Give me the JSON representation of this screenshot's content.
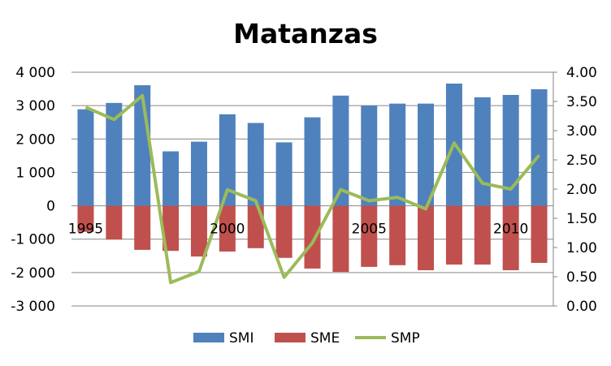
{
  "chart_data": {
    "type": "bar",
    "title": "Matanzas",
    "categories": [
      "1995",
      "1996",
      "1997",
      "1998",
      "1999",
      "2000",
      "2001",
      "2002",
      "2003",
      "2004",
      "2005",
      "2006",
      "2007",
      "2008",
      "2009",
      "2010",
      "2011"
    ],
    "x_tick_labels": [
      "1995",
      "2000",
      "2005",
      "2010"
    ],
    "series": [
      {
        "name": "SMI",
        "type": "bar",
        "axis": "left",
        "color": "#4f81bd",
        "values": [
          2890,
          3080,
          3610,
          1630,
          1920,
          2740,
          2480,
          1900,
          2650,
          3300,
          3000,
          3060,
          3060,
          3660,
          3250,
          3320,
          3490
        ]
      },
      {
        "name": "SME",
        "type": "bar",
        "axis": "left",
        "color": "#c0504d",
        "values": [
          -780,
          -1010,
          -1320,
          -1350,
          -1520,
          -1370,
          -1270,
          -1560,
          -1880,
          -1980,
          -1830,
          -1780,
          -1930,
          -1760,
          -1760,
          -1930,
          -1710
        ]
      },
      {
        "name": "SMP",
        "type": "line",
        "axis": "right",
        "color": "#9bbb59",
        "values": [
          3.4,
          3.19,
          3.6,
          0.4,
          0.59,
          1.99,
          1.8,
          0.49,
          1.08,
          1.99,
          1.8,
          1.86,
          1.66,
          2.79,
          2.1,
          2.0,
          2.58
        ]
      }
    ],
    "left_axis": {
      "ylim": [
        -3000,
        4000
      ],
      "ticks": [
        "-3 000",
        "-2 000",
        "-1 000",
        "0",
        "1 000",
        "2 000",
        "3 000",
        "4 000"
      ],
      "tick_values": [
        -3000,
        -2000,
        -1000,
        0,
        1000,
        2000,
        3000,
        4000
      ]
    },
    "right_axis": {
      "ylim": [
        0,
        4
      ],
      "ticks": [
        "0.00",
        "0.50",
        "1.00",
        "1.50",
        "2.00",
        "2.50",
        "3.00",
        "3.50",
        "4.00"
      ],
      "tick_values": [
        0,
        0.5,
        1,
        1.5,
        2,
        2.5,
        3,
        3.5,
        4
      ]
    },
    "grid": true,
    "legend": "bottom",
    "legend_entries": [
      "SMI",
      "SME",
      "SMP"
    ]
  }
}
